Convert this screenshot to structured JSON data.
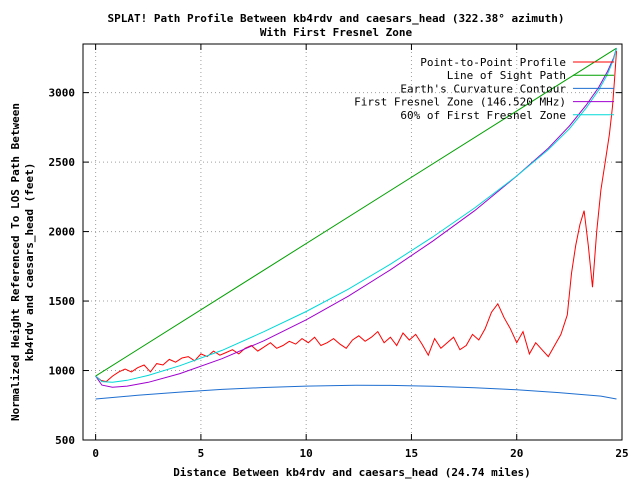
{
  "chart_data": {
    "type": "line",
    "title": "SPLAT! Path Profile Between kb4rdv and caesars_head (322.38° azimuth)",
    "subtitle": "With First Fresnel Zone",
    "xlabel": "Distance Between kb4rdv and caesars_head (24.74 miles)",
    "ylabel_line1": "Normalized Height Referenced To LOS Path Between",
    "ylabel_line2": "kb4rdv and caesars_head (feet)",
    "xlim": [
      -0.6,
      25
    ],
    "ylim": [
      500,
      3350
    ],
    "xticks": [
      0,
      5,
      10,
      15,
      20,
      25
    ],
    "yticks": [
      500,
      1000,
      1500,
      2000,
      2500,
      3000
    ],
    "grid": true,
    "legend_position": "top-right",
    "series": [
      {
        "name": "Point-to-Point Profile",
        "color": "#ff0000",
        "x": [
          0,
          0.25,
          0.5,
          0.8,
          1.1,
          1.4,
          1.7,
          2.0,
          2.3,
          2.6,
          2.9,
          3.2,
          3.5,
          3.8,
          4.1,
          4.4,
          4.7,
          5.0,
          5.3,
          5.6,
          5.9,
          6.2,
          6.5,
          6.8,
          7.1,
          7.4,
          7.7,
          8.0,
          8.3,
          8.6,
          8.9,
          9.2,
          9.5,
          9.8,
          10.1,
          10.4,
          10.7,
          11.0,
          11.3,
          11.6,
          11.9,
          12.2,
          12.5,
          12.8,
          13.1,
          13.4,
          13.7,
          14.0,
          14.3,
          14.6,
          14.9,
          15.2,
          15.5,
          15.8,
          16.1,
          16.4,
          16.7,
          17.0,
          17.3,
          17.6,
          17.9,
          18.2,
          18.5,
          18.8,
          19.1,
          19.4,
          19.7,
          20.0,
          20.3,
          20.6,
          20.9,
          21.2,
          21.5,
          21.8,
          22.1,
          22.4,
          22.6,
          22.8,
          23.0,
          23.2,
          23.4,
          23.6,
          23.8,
          24.0,
          24.2,
          24.4,
          24.55,
          24.65,
          24.74
        ],
        "y": [
          960,
          930,
          920,
          960,
          990,
          1010,
          990,
          1020,
          1040,
          990,
          1050,
          1040,
          1080,
          1060,
          1090,
          1100,
          1070,
          1120,
          1100,
          1140,
          1110,
          1130,
          1150,
          1120,
          1160,
          1180,
          1140,
          1170,
          1200,
          1160,
          1180,
          1210,
          1190,
          1230,
          1200,
          1240,
          1180,
          1200,
          1230,
          1190,
          1160,
          1220,
          1250,
          1210,
          1240,
          1280,
          1200,
          1240,
          1180,
          1270,
          1220,
          1260,
          1190,
          1110,
          1230,
          1160,
          1200,
          1240,
          1150,
          1180,
          1260,
          1220,
          1300,
          1420,
          1480,
          1380,
          1300,
          1200,
          1280,
          1120,
          1200,
          1150,
          1100,
          1180,
          1260,
          1400,
          1700,
          1900,
          2050,
          2150,
          1900,
          1600,
          2000,
          2300,
          2500,
          2700,
          2900,
          3100,
          3300
        ]
      },
      {
        "name": "Line of Sight Path",
        "color": "#00a000",
        "x": [
          0,
          24.74
        ],
        "y": [
          960,
          3320
        ]
      },
      {
        "name": "Earth's Curvature Contour",
        "color": "#1e6ed0",
        "x": [
          0,
          2,
          4,
          6,
          8,
          10,
          12,
          12.37,
          14,
          16,
          18,
          20,
          22,
          24,
          24.74
        ],
        "y": [
          795,
          822,
          845,
          864,
          878,
          888,
          893,
          894,
          893,
          887,
          876,
          861,
          841,
          816,
          795
        ]
      },
      {
        "name": "First Fresnel Zone (146.520 MHz)",
        "color": "#a000d0",
        "x": [
          0,
          0.3,
          0.8,
          1.5,
          2.5,
          4,
          6,
          8,
          10,
          12,
          14,
          16,
          18,
          20,
          21.5,
          22.5,
          23.3,
          23.9,
          24.3,
          24.6,
          24.74
        ],
        "y": [
          960,
          895,
          880,
          888,
          915,
          978,
          1085,
          1215,
          1365,
          1535,
          1725,
          1930,
          2150,
          2400,
          2600,
          2760,
          2910,
          3040,
          3150,
          3250,
          3320
        ]
      },
      {
        "name": "60% of First Fresnel Zone",
        "color": "#00d8d8",
        "x": [
          0,
          0.3,
          0.8,
          1.5,
          2.5,
          4,
          6,
          8,
          10,
          12,
          14,
          16,
          18,
          20,
          21.5,
          22.5,
          23.3,
          23.9,
          24.3,
          24.6,
          24.74
        ],
        "y": [
          960,
          920,
          915,
          930,
          965,
          1035,
          1145,
          1280,
          1425,
          1585,
          1765,
          1960,
          2170,
          2400,
          2590,
          2740,
          2890,
          3020,
          3130,
          3240,
          3320
        ]
      }
    ]
  }
}
